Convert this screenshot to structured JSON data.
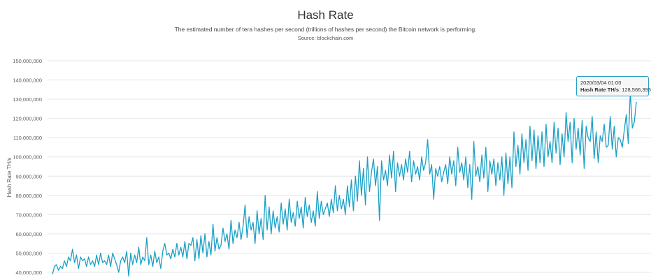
{
  "header": {
    "title": "Hash Rate",
    "subtitle": "The estimated number of tera hashes per second (trillions of hashes per second) the Bitcoin network is performing.",
    "source": "Source: blockchain.com"
  },
  "tooltip": {
    "date": "2020/03/04 01:00",
    "label": "Hash Rate TH/s",
    "value": "128,566,393"
  },
  "colors": {
    "series": "#1aa0c6",
    "grid": "#e6e6e6",
    "tooltip_border": "#2aa1c7"
  },
  "chart_data": {
    "type": "line",
    "title": "Hash Rate",
    "ylabel": "Hash Rate TH/s",
    "xlabel": "",
    "ylim": [
      36000000,
      155000000
    ],
    "yticks": [
      40000000,
      50000000,
      60000000,
      70000000,
      80000000,
      90000000,
      100000000,
      110000000,
      120000000,
      130000000,
      140000000,
      150000000
    ],
    "ytick_labels": [
      "40,000,000",
      "50,000,000",
      "60,000,000",
      "70,000,000",
      "80,000,000",
      "90,000,000",
      "100,000,000",
      "110,000,000",
      "120,000,000",
      "130,000,000",
      "140,000,000",
      "150,000,000"
    ],
    "grid": true,
    "legend": "none",
    "x_range": [
      "",
      "2020/03/04 01:00"
    ],
    "series": [
      {
        "name": "Hash Rate TH/s",
        "values": [
          39000000,
          43000000,
          44000000,
          41000000,
          43000000,
          42000000,
          46000000,
          43000000,
          48000000,
          46000000,
          52000000,
          45000000,
          49000000,
          42000000,
          48000000,
          46000000,
          47000000,
          43000000,
          48000000,
          44000000,
          46000000,
          43000000,
          49000000,
          44000000,
          50000000,
          45000000,
          46000000,
          44000000,
          49000000,
          43000000,
          50000000,
          47000000,
          44000000,
          40000000,
          46000000,
          48000000,
          45000000,
          51000000,
          38000000,
          50000000,
          44000000,
          49000000,
          45000000,
          53000000,
          44000000,
          48000000,
          46000000,
          58000000,
          44000000,
          49000000,
          43000000,
          51000000,
          45000000,
          48000000,
          42000000,
          51000000,
          55000000,
          49000000,
          50000000,
          47000000,
          52000000,
          48000000,
          55000000,
          49000000,
          53000000,
          48000000,
          56000000,
          47000000,
          55000000,
          54000000,
          58000000,
          46000000,
          57000000,
          47000000,
          59000000,
          50000000,
          60000000,
          48000000,
          56000000,
          49000000,
          65000000,
          51000000,
          58000000,
          52000000,
          54000000,
          63000000,
          56000000,
          60000000,
          52000000,
          67000000,
          55000000,
          62000000,
          58000000,
          66000000,
          57000000,
          64000000,
          75000000,
          58000000,
          69000000,
          62000000,
          66000000,
          55000000,
          72000000,
          60000000,
          68000000,
          57000000,
          80000000,
          62000000,
          74000000,
          60000000,
          72000000,
          63000000,
          69000000,
          61000000,
          76000000,
          65000000,
          73000000,
          62000000,
          78000000,
          66000000,
          71000000,
          64000000,
          77000000,
          68000000,
          74000000,
          63000000,
          79000000,
          69000000,
          75000000,
          66000000,
          72000000,
          64000000,
          82000000,
          68000000,
          77000000,
          70000000,
          73000000,
          76000000,
          69000000,
          78000000,
          71000000,
          85000000,
          72000000,
          80000000,
          73000000,
          78000000,
          70000000,
          85000000,
          74000000,
          88000000,
          72000000,
          90000000,
          77000000,
          98000000,
          80000000,
          94000000,
          75000000,
          100000000,
          82000000,
          92000000,
          99000000,
          85000000,
          95000000,
          67000000,
          98000000,
          88000000,
          93000000,
          85000000,
          101000000,
          89000000,
          103000000,
          82000000,
          97000000,
          90000000,
          96000000,
          88000000,
          99000000,
          92000000,
          103000000,
          87000000,
          98000000,
          91000000,
          95000000,
          88000000,
          100000000,
          93000000,
          97000000,
          109000000,
          91000000,
          96000000,
          78000000,
          94000000,
          90000000,
          95000000,
          87000000,
          92000000,
          96000000,
          86000000,
          100000000,
          91000000,
          98000000,
          85000000,
          105000000,
          92000000,
          97000000,
          88000000,
          100000000,
          84000000,
          96000000,
          78000000,
          108000000,
          90000000,
          95000000,
          87000000,
          101000000,
          89000000,
          105000000,
          82000000,
          98000000,
          91000000,
          99000000,
          85000000,
          97000000,
          88000000,
          100000000,
          80000000,
          102000000,
          86000000,
          100000000,
          84000000,
          113000000,
          95000000,
          106000000,
          91000000,
          112000000,
          97000000,
          109000000,
          93000000,
          116000000,
          98000000,
          114000000,
          94000000,
          111000000,
          97000000,
          113000000,
          95000000,
          117000000,
          100000000,
          108000000,
          97000000,
          118000000,
          102000000,
          115000000,
          96000000,
          112000000,
          100000000,
          123000000,
          108000000,
          118000000,
          97000000,
          120000000,
          104000000,
          115000000,
          101000000,
          119000000,
          94000000,
          116000000,
          110000000,
          108000000,
          121000000,
          99000000,
          113000000,
          97000000,
          111000000,
          108000000,
          117000000,
          105000000,
          106000000,
          121000000,
          104000000,
          116000000,
          100000000,
          110000000,
          109000000,
          105000000,
          114000000,
          122000000,
          107000000,
          134000000,
          115000000,
          118000000,
          128566393
        ]
      }
    ]
  }
}
